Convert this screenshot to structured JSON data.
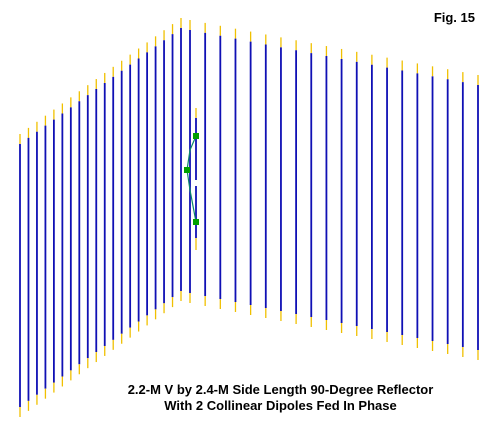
{
  "figure": {
    "label": "Fig. 15",
    "caption_line1": "2.2-M V by 2.4-M Side Length 90-Degree Reflector",
    "caption_line2": "With 2 Collinear Dipoles Fed In Phase"
  },
  "colors": {
    "element": "#1010b4",
    "element_tip": "#f0c000",
    "feed_wire": "#0a8a6a",
    "source_marker": "#00a000",
    "background": "#ffffff"
  },
  "reflector": {
    "left_side_elements": 20,
    "right_side_elements": 20
  }
}
